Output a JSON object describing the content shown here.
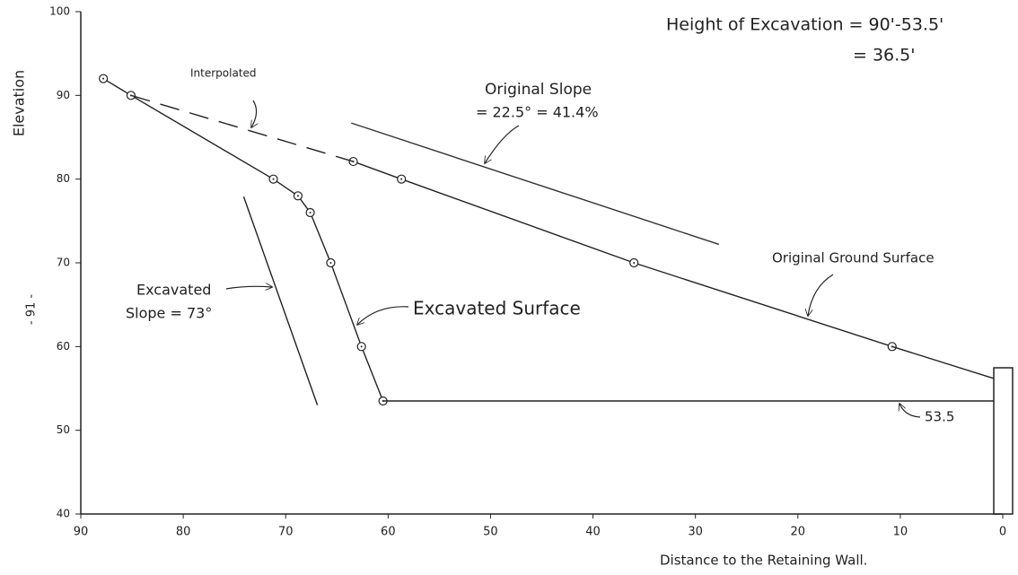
{
  "chart_data": {
    "type": "line",
    "xlabel": "Distance to the Retaining Wall.",
    "ylabel": "Elevation",
    "page_number": "- 91 -",
    "xlim": [
      90,
      0
    ],
    "xticks": [
      90,
      80,
      70,
      60,
      50,
      40,
      30,
      20,
      10,
      0
    ],
    "ylim": [
      40,
      100
    ],
    "yticks": [
      40,
      50,
      60,
      70,
      80,
      90,
      100
    ],
    "grid": false,
    "series": [
      {
        "x": [
          87.8,
          85.1,
          71.2,
          68.8,
          67.6,
          65.6,
          62.6,
          60.5
        ],
        "values": [
          92,
          90,
          80,
          78,
          76,
          70,
          60,
          53.5
        ],
        "color": "#222222",
        "dash": false,
        "markers": true
      },
      {
        "x": [
          60.5,
          0.9
        ],
        "values": [
          53.5,
          53.5
        ],
        "color": "#222222",
        "dash": false,
        "markers": false
      },
      {
        "x": [
          63.4,
          58.7,
          36,
          10.8
        ],
        "values": [
          82.1,
          80,
          70,
          60
        ],
        "color": "#222222",
        "dash": false,
        "markers": true
      },
      {
        "x": [
          10.8,
          0.9
        ],
        "values": [
          60,
          56.2
        ],
        "color": "#222222",
        "dash": false,
        "markers": false
      },
      {
        "x": [
          85.1,
          63.4
        ],
        "values": [
          90,
          82.1
        ],
        "color": "#222222",
        "dash": true,
        "markers": false
      },
      {
        "x": [
          63.6,
          27.7
        ],
        "values": [
          86.7,
          72.2
        ],
        "color": "#333333",
        "dash": false,
        "markers": false
      },
      {
        "x": [
          74.1,
          66.9
        ],
        "values": [
          77.9,
          53
        ],
        "color": "#222222",
        "dash": false,
        "markers": false
      }
    ],
    "annotations": [
      "Height of Excavation = 90'-53.5'",
      "= 36.5'",
      "Interpolated",
      "Original Slope",
      "= 22.5° = 41.4%",
      "Original Ground Surface",
      "Excavated Surface",
      "Excavated",
      "Slope = 73°",
      "53.5"
    ]
  }
}
